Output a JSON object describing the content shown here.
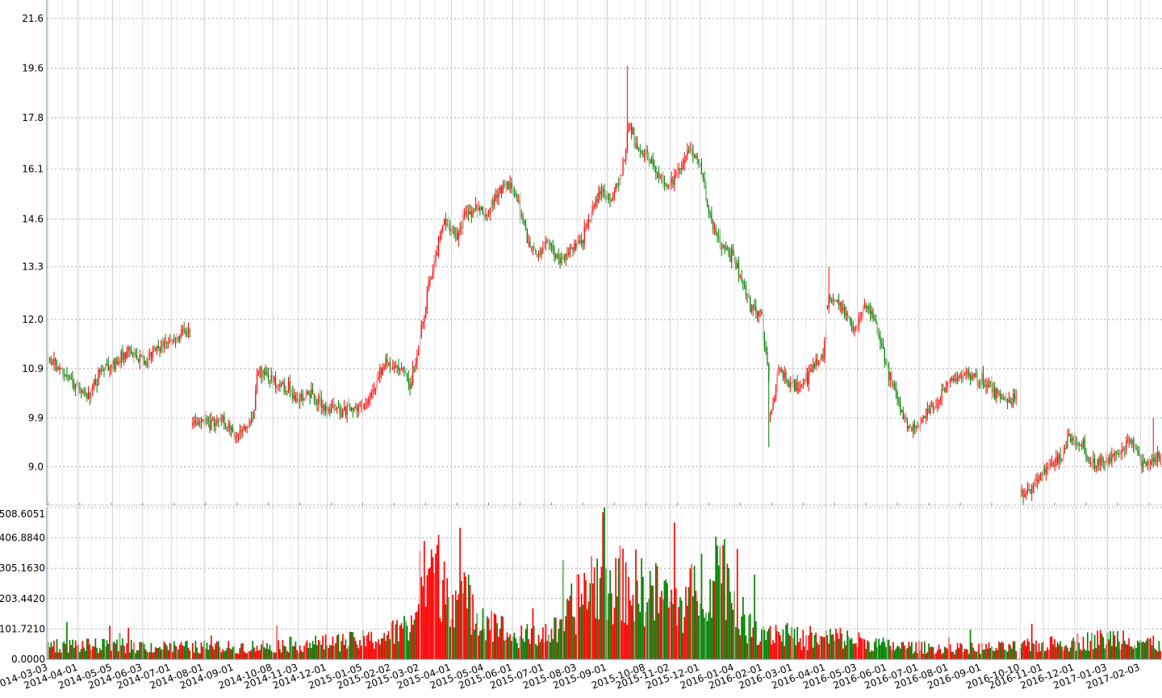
{
  "chart_data": [
    {
      "type": "candlestick",
      "title": "",
      "ylim": [
        8.35,
        22.4
      ],
      "yticks": [
        21.6,
        19.6,
        17.8,
        16.1,
        14.6,
        13.3,
        12.0,
        10.9,
        9.9,
        9.0
      ],
      "ytick_labels": [
        "21.6",
        "19.6",
        "17.8",
        "16.1",
        "14.6",
        "13.3",
        "12.0",
        "10.9",
        "9.9",
        "9.0"
      ],
      "y_scale": "log",
      "x_range": [
        "2014-03-03",
        "2017-02-23"
      ],
      "grid": true,
      "up_color": "#ff0000",
      "down_color": "#008000",
      "price_path": [
        [
          "2014-03-03",
          11.1
        ],
        [
          "2014-03-20",
          10.7
        ],
        [
          "2014-04-10",
          10.3
        ],
        [
          "2014-04-22",
          10.9
        ],
        [
          "2014-05-08",
          11.0
        ],
        [
          "2014-05-20",
          11.3
        ],
        [
          "2014-06-05",
          11.1
        ],
        [
          "2014-06-20",
          11.4
        ],
        [
          "2014-07-05",
          11.55
        ],
        [
          "2014-07-18",
          11.75
        ],
        [
          "2014-07-22",
          9.7
        ],
        [
          "2014-08-05",
          9.85
        ],
        [
          "2014-08-20",
          9.8
        ],
        [
          "2014-09-05",
          9.55
        ],
        [
          "2014-09-18",
          9.9
        ],
        [
          "2014-09-25",
          10.9
        ],
        [
          "2014-10-15",
          10.6
        ],
        [
          "2014-11-01",
          10.25
        ],
        [
          "2014-11-15",
          10.4
        ],
        [
          "2014-12-01",
          10.1
        ],
        [
          "2014-12-20",
          10.05
        ],
        [
          "2015-01-10",
          10.2
        ],
        [
          "2015-01-25",
          11.0
        ],
        [
          "2015-02-10",
          10.9
        ],
        [
          "2015-02-20",
          10.6
        ],
        [
          "2015-03-01",
          11.5
        ],
        [
          "2015-03-08",
          12.6
        ],
        [
          "2015-03-15",
          13.4
        ],
        [
          "2015-03-25",
          14.6
        ],
        [
          "2015-04-05",
          14.1
        ],
        [
          "2015-04-15",
          14.8
        ],
        [
          "2015-04-25",
          15.0
        ],
        [
          "2015-05-05",
          14.6
        ],
        [
          "2015-05-15",
          15.3
        ],
        [
          "2015-05-25",
          15.7
        ],
        [
          "2015-06-05",
          15.2
        ],
        [
          "2015-06-15",
          14.0
        ],
        [
          "2015-06-25",
          13.7
        ],
        [
          "2015-07-05",
          13.95
        ],
        [
          "2015-07-15",
          13.5
        ],
        [
          "2015-07-25",
          13.7
        ],
        [
          "2015-08-05",
          13.9
        ],
        [
          "2015-08-15",
          14.7
        ],
        [
          "2015-08-25",
          15.4
        ],
        [
          "2015-09-05",
          15.1
        ],
        [
          "2015-09-15",
          16.0
        ],
        [
          "2015-09-22",
          17.5
        ],
        [
          "2015-09-30",
          16.8
        ],
        [
          "2015-10-10",
          16.5
        ],
        [
          "2015-10-20",
          16.0
        ],
        [
          "2015-10-30",
          15.6
        ],
        [
          "2015-11-10",
          16.0
        ],
        [
          "2015-11-20",
          16.8
        ],
        [
          "2015-11-30",
          16.3
        ],
        [
          "2015-12-10",
          14.7
        ],
        [
          "2015-12-20",
          13.9
        ],
        [
          "2016-01-01",
          13.6
        ],
        [
          "2016-01-10",
          12.9
        ],
        [
          "2016-01-20",
          12.3
        ],
        [
          "2016-01-30",
          12.15
        ],
        [
          "2016-02-08",
          10.0
        ],
        [
          "2016-02-15",
          10.9
        ],
        [
          "2016-02-25",
          10.6
        ],
        [
          "2016-03-08",
          10.5
        ],
        [
          "2016-03-20",
          10.9
        ],
        [
          "2016-03-30",
          11.2
        ],
        [
          "2016-04-05",
          12.6
        ],
        [
          "2016-04-15",
          12.4
        ],
        [
          "2016-04-25",
          12.0
        ],
        [
          "2016-05-01",
          11.8
        ],
        [
          "2016-05-10",
          12.3
        ],
        [
          "2016-05-20",
          12.0
        ],
        [
          "2016-05-30",
          11.0
        ],
        [
          "2016-06-10",
          10.3
        ],
        [
          "2016-06-20",
          9.7
        ],
        [
          "2016-06-30",
          9.75
        ],
        [
          "2016-07-10",
          10.05
        ],
        [
          "2016-07-20",
          10.15
        ],
        [
          "2016-07-30",
          10.6
        ],
        [
          "2016-08-10",
          10.7
        ],
        [
          "2016-08-20",
          10.8
        ],
        [
          "2016-09-01",
          10.6
        ],
        [
          "2016-09-10",
          10.5
        ],
        [
          "2016-09-20",
          10.3
        ],
        [
          "2016-09-30",
          10.2
        ],
        [
          "2016-10-05",
          10.35
        ],
        [
          "2016-10-08",
          8.5
        ],
        [
          "2016-10-20",
          8.6
        ],
        [
          "2016-10-30",
          8.9
        ],
        [
          "2016-11-10",
          9.05
        ],
        [
          "2016-11-20",
          9.2
        ],
        [
          "2016-11-26",
          9.55
        ],
        [
          "2016-12-01",
          9.45
        ],
        [
          "2016-12-10",
          9.4
        ],
        [
          "2016-12-15",
          9.1
        ],
        [
          "2016-12-25",
          9.05
        ],
        [
          "2017-01-05",
          9.15
        ],
        [
          "2017-01-15",
          9.2
        ],
        [
          "2017-01-22",
          9.5
        ],
        [
          "2017-01-30",
          9.35
        ],
        [
          "2017-02-05",
          9.05
        ],
        [
          "2017-02-15",
          9.1
        ],
        [
          "2017-02-23",
          9.25
        ]
      ]
    },
    {
      "type": "bar",
      "title": "",
      "ylim": [
        0,
        508.6051
      ],
      "yticks": [
        508.6051,
        406.884,
        305.163,
        203.442,
        101.721,
        0
      ],
      "ytick_labels": [
        "508.6051",
        "406.8840",
        "305.1630",
        "203.4420",
        "101.7210",
        "0.0000"
      ],
      "grid": true,
      "up_color": "#ff0000",
      "down_color": "#008000",
      "volume_profile": [
        [
          "2014-03-03",
          48
        ],
        [
          "2014-06-01",
          42
        ],
        [
          "2014-09-01",
          40
        ],
        [
          "2014-12-01",
          55
        ],
        [
          "2015-01-15",
          65
        ],
        [
          "2015-02-20",
          110
        ],
        [
          "2015-03-10",
          320
        ],
        [
          "2015-04-01",
          230
        ],
        [
          "2015-05-01",
          150
        ],
        [
          "2015-06-01",
          70
        ],
        [
          "2015-07-15",
          95
        ],
        [
          "2015-08-15",
          260
        ],
        [
          "2015-10-01",
          240
        ],
        [
          "2015-11-15",
          180
        ],
        [
          "2015-12-20",
          330
        ],
        [
          "2016-01-15",
          110
        ],
        [
          "2016-02-15",
          90
        ],
        [
          "2016-03-15",
          60
        ],
        [
          "2016-04-10",
          75
        ],
        [
          "2016-06-01",
          45
        ],
        [
          "2016-08-01",
          35
        ],
        [
          "2016-10-01",
          40
        ],
        [
          "2016-11-25",
          55
        ],
        [
          "2017-01-20",
          75
        ],
        [
          "2017-02-23",
          45
        ]
      ],
      "x_tick_labels": [
        "2014-03-03",
        "2014-04-01",
        "2014-05-05",
        "2014-06-03",
        "2014-07-01",
        "2014-08-01",
        "2014-09-01",
        "2014-10-08",
        "2014-11-03",
        "2014-12-01",
        "2015-01-05",
        "2015-02-02",
        "2015-03-02",
        "2015-04-01",
        "2015-05-04",
        "2015-06-01",
        "2015-07-01",
        "2015-08-03",
        "2015-09-01",
        "2015-10-08",
        "2015-11-02",
        "2015-12-01",
        "2016-01-04",
        "2016-02-01",
        "2016-03-01",
        "2016-04-01",
        "2016-05-03",
        "2016-06-01",
        "2016-07-01",
        "2016-08-01",
        "2016-09-01",
        "2016-10-10",
        "2016-11-01",
        "2016-12-01",
        "2017-01-03",
        "2017-02-03"
      ]
    }
  ]
}
